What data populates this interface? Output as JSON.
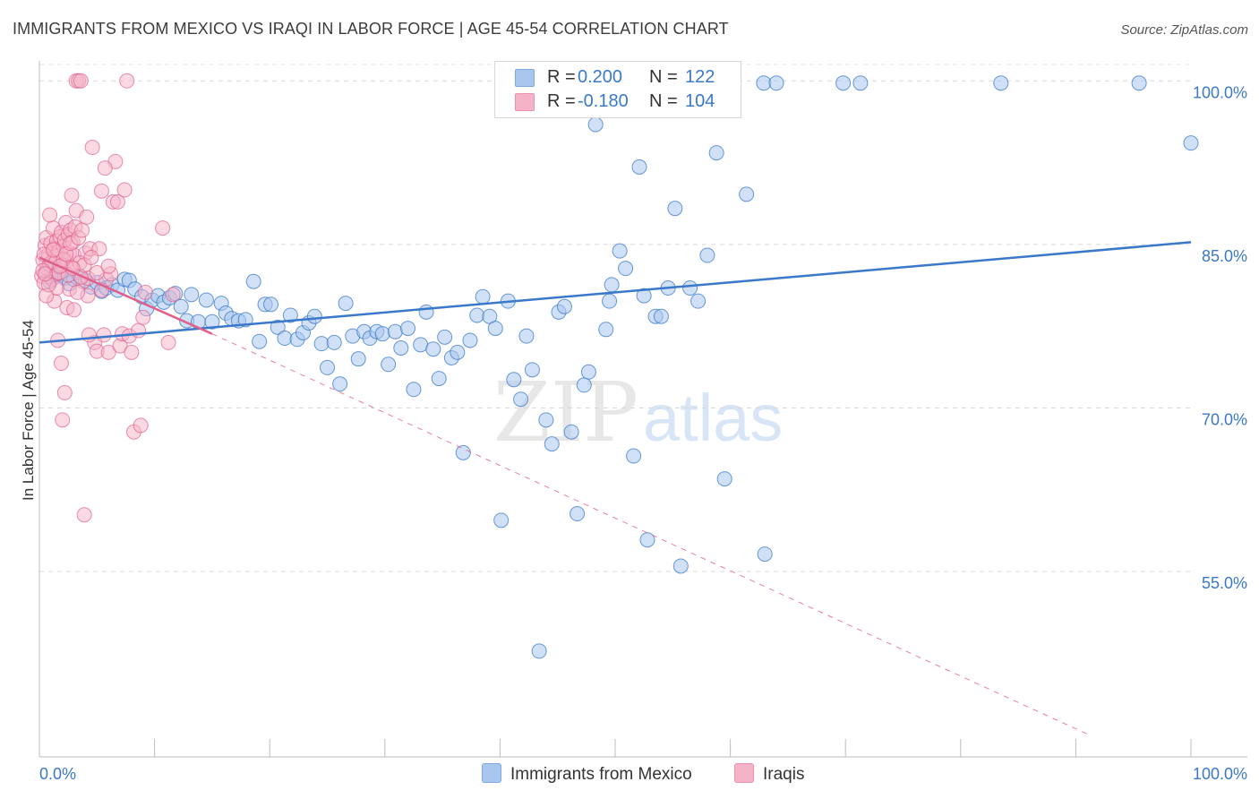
{
  "header": {
    "title": "IMMIGRANTS FROM MEXICO VS IRAQI IN LABOR FORCE | AGE 45-54 CORRELATION CHART",
    "source": "Source: ZipAtlas.com"
  },
  "watermark": {
    "part1": "ZIP",
    "part2": "atlas"
  },
  "legend": {
    "rows": [
      {
        "r_label": "R =",
        "r_value": "0.200",
        "n_label": "N =",
        "n_value": "122",
        "color": "#a9c6ee"
      },
      {
        "r_label": "R =",
        "r_value": "-0.180",
        "n_label": "N =",
        "n_value": "104",
        "color": "#f5b3c8"
      }
    ]
  },
  "bottom_legend": [
    {
      "label": "Immigrants from Mexico",
      "color": "#a9c6ee"
    },
    {
      "label": "Iraqis",
      "color": "#f5b3c8"
    }
  ],
  "chart_data": {
    "type": "scatter",
    "title": "IMMIGRANTS FROM MEXICO VS IRAQI IN LABOR FORCE | AGE 45-54 CORRELATION CHART",
    "xlabel": "",
    "ylabel": "In Labor Force | Age 45-54",
    "xlim": [
      0,
      100
    ],
    "ylim": [
      38,
      101.5
    ],
    "x_tick_labels": [
      "0.0%",
      "100.0%"
    ],
    "y_ticks": [
      55,
      70,
      85,
      100
    ],
    "y_tick_labels": [
      "55.0%",
      "70.0%",
      "85.0%",
      "100.0%"
    ],
    "grid": true,
    "colors": {
      "mexico": "#3a78c9",
      "iraqi": "#e0608c",
      "mexico_fill": "#a9c6ee",
      "iraqi_fill": "#f5b3c8",
      "tick_text": "#3a78c9"
    },
    "series": [
      {
        "name": "Immigrants from Mexico",
        "r": 0.2,
        "n": 122,
        "trend": {
          "x": [
            0,
            100
          ],
          "y": [
            76.0,
            85.2
          ],
          "style": "solid"
        },
        "points": [
          [
            0.6,
            82.4
          ],
          [
            0.9,
            81.6
          ],
          [
            1.1,
            82.0
          ],
          [
            1.3,
            82.8
          ],
          [
            1.5,
            82.2
          ],
          [
            1.7,
            83.0
          ],
          [
            1.9,
            82.5
          ],
          [
            2.2,
            81.9
          ],
          [
            2.6,
            81.4
          ],
          [
            3.0,
            81.8
          ],
          [
            3.5,
            82.1
          ],
          [
            4.0,
            81.7
          ],
          [
            4.5,
            81.1
          ],
          [
            5.0,
            81.5
          ],
          [
            5.4,
            80.7
          ],
          [
            5.8,
            81.0
          ],
          [
            6.3,
            81.3
          ],
          [
            6.8,
            80.8
          ],
          [
            7.4,
            81.8
          ],
          [
            7.8,
            81.7
          ],
          [
            8.3,
            80.9
          ],
          [
            8.9,
            80.2
          ],
          [
            9.3,
            79.1
          ],
          [
            9.8,
            79.9
          ],
          [
            10.3,
            80.3
          ],
          [
            10.8,
            79.7
          ],
          [
            11.3,
            80.1
          ],
          [
            11.8,
            80.5
          ],
          [
            12.3,
            79.3
          ],
          [
            12.8,
            78.0
          ],
          [
            13.2,
            80.4
          ],
          [
            13.8,
            77.9
          ],
          [
            14.5,
            79.9
          ],
          [
            15.0,
            77.9
          ],
          [
            15.8,
            79.6
          ],
          [
            16.2,
            78.7
          ],
          [
            16.7,
            78.2
          ],
          [
            17.3,
            78.0
          ],
          [
            17.9,
            78.1
          ],
          [
            18.6,
            81.6
          ],
          [
            19.1,
            76.1
          ],
          [
            19.6,
            79.5
          ],
          [
            20.1,
            79.5
          ],
          [
            20.7,
            77.4
          ],
          [
            21.3,
            76.4
          ],
          [
            21.8,
            78.5
          ],
          [
            22.4,
            76.3
          ],
          [
            22.9,
            76.9
          ],
          [
            23.4,
            77.8
          ],
          [
            23.9,
            78.4
          ],
          [
            24.5,
            75.9
          ],
          [
            25.0,
            73.7
          ],
          [
            25.6,
            76.0
          ],
          [
            26.1,
            72.2
          ],
          [
            26.6,
            79.6
          ],
          [
            27.2,
            76.6
          ],
          [
            27.7,
            74.5
          ],
          [
            28.2,
            77.0
          ],
          [
            28.7,
            76.4
          ],
          [
            29.3,
            77.0
          ],
          [
            29.8,
            76.8
          ],
          [
            30.3,
            74.0
          ],
          [
            30.9,
            77.0
          ],
          [
            31.4,
            75.5
          ],
          [
            32.0,
            77.3
          ],
          [
            32.5,
            71.7
          ],
          [
            33.1,
            75.8
          ],
          [
            33.6,
            78.8
          ],
          [
            34.2,
            75.4
          ],
          [
            34.7,
            72.7
          ],
          [
            35.2,
            76.5
          ],
          [
            35.8,
            74.6
          ],
          [
            36.3,
            75.1
          ],
          [
            36.8,
            65.9
          ],
          [
            37.4,
            76.2
          ],
          [
            38.0,
            78.5
          ],
          [
            38.5,
            80.2
          ],
          [
            39.1,
            78.4
          ],
          [
            39.6,
            77.3
          ],
          [
            40.1,
            59.7
          ],
          [
            40.7,
            79.8
          ],
          [
            41.2,
            72.6
          ],
          [
            41.8,
            70.8
          ],
          [
            42.3,
            76.6
          ],
          [
            42.8,
            73.5
          ],
          [
            43.4,
            47.7
          ],
          [
            44.0,
            68.9
          ],
          [
            44.5,
            66.7
          ],
          [
            45.1,
            78.8
          ],
          [
            45.6,
            79.3
          ],
          [
            46.2,
            67.8
          ],
          [
            46.7,
            60.3
          ],
          [
            47.3,
            72.1
          ],
          [
            47.7,
            73.3
          ],
          [
            48.3,
            96.0
          ],
          [
            49.2,
            77.2
          ],
          [
            49.7,
            81.3
          ],
          [
            50.4,
            84.4
          ],
          [
            50.9,
            82.8
          ],
          [
            51.6,
            65.6
          ],
          [
            52.1,
            92.1
          ],
          [
            52.8,
            57.9
          ],
          [
            53.5,
            78.4
          ],
          [
            54.0,
            78.4
          ],
          [
            54.6,
            81.0
          ],
          [
            55.2,
            88.3
          ],
          [
            55.7,
            55.5
          ],
          [
            56.5,
            81.0
          ],
          [
            57.2,
            79.8
          ],
          [
            58.0,
            84.0
          ],
          [
            58.8,
            93.4
          ],
          [
            59.5,
            63.5
          ],
          [
            61.4,
            89.6
          ],
          [
            63.0,
            56.6
          ],
          [
            62.9,
            99.8
          ],
          [
            64.0,
            99.8
          ],
          [
            69.8,
            99.8
          ],
          [
            71.3,
            99.8
          ],
          [
            83.5,
            99.8
          ],
          [
            95.5,
            99.8
          ],
          [
            100.0,
            94.3
          ],
          [
            49.5,
            79.8
          ],
          [
            52.5,
            80.3
          ]
        ]
      },
      {
        "name": "Iraqis",
        "r": -0.18,
        "n": 104,
        "trend": {
          "x": [
            0,
            15.0
          ],
          "y": [
            83.8,
            76.8
          ],
          "style": "solid",
          "extended": {
            "x": [
              15.0,
              91.2
            ],
            "y": [
              76.8,
              40.0
            ],
            "style": "dashed"
          }
        },
        "points": [
          [
            0.2,
            82.1
          ],
          [
            0.3,
            83.6
          ],
          [
            0.4,
            81.5
          ],
          [
            0.5,
            84.9
          ],
          [
            0.6,
            85.6
          ],
          [
            0.7,
            82.8
          ],
          [
            0.8,
            84.1
          ],
          [
            0.9,
            83.2
          ],
          [
            1.0,
            85.1
          ],
          [
            1.1,
            81.8
          ],
          [
            1.2,
            86.5
          ],
          [
            1.3,
            84.6
          ],
          [
            1.4,
            83.9
          ],
          [
            1.5,
            85.3
          ],
          [
            1.6,
            82.4
          ],
          [
            1.7,
            84.4
          ],
          [
            1.8,
            85.7
          ],
          [
            1.9,
            86.1
          ],
          [
            2.0,
            83.1
          ],
          [
            2.1,
            84.8
          ],
          [
            2.2,
            85.4
          ],
          [
            2.3,
            87.0
          ],
          [
            2.4,
            83.5
          ],
          [
            2.5,
            85.9
          ],
          [
            2.6,
            84.2
          ],
          [
            2.7,
            86.3
          ],
          [
            2.8,
            82.9
          ],
          [
            2.9,
            85.2
          ],
          [
            3.0,
            84.0
          ],
          [
            3.1,
            86.6
          ],
          [
            3.2,
            88.1
          ],
          [
            0.9,
            87.7
          ],
          [
            1.3,
            79.8
          ],
          [
            1.6,
            76.2
          ],
          [
            1.9,
            74.1
          ],
          [
            2.0,
            68.9
          ],
          [
            2.2,
            71.4
          ],
          [
            2.4,
            79.2
          ],
          [
            2.6,
            80.9
          ],
          [
            2.8,
            89.5
          ],
          [
            3.0,
            79.0
          ],
          [
            3.2,
            100.0
          ],
          [
            3.4,
            100.0
          ],
          [
            3.6,
            100.0
          ],
          [
            3.8,
            81.6
          ],
          [
            4.0,
            84.2
          ],
          [
            4.2,
            81.9
          ],
          [
            4.4,
            84.6
          ],
          [
            4.6,
            93.9
          ],
          [
            4.8,
            76.0
          ],
          [
            5.0,
            75.2
          ],
          [
            5.2,
            84.6
          ],
          [
            5.4,
            89.9
          ],
          [
            5.6,
            76.7
          ],
          [
            5.8,
            81.8
          ],
          [
            6.0,
            75.1
          ],
          [
            6.2,
            82.3
          ],
          [
            6.4,
            88.9
          ],
          [
            6.6,
            92.6
          ],
          [
            6.8,
            88.9
          ],
          [
            7.0,
            75.7
          ],
          [
            7.2,
            76.8
          ],
          [
            7.4,
            90.0
          ],
          [
            7.6,
            100.0
          ],
          [
            7.8,
            76.6
          ],
          [
            8.0,
            75.1
          ],
          [
            8.2,
            67.8
          ],
          [
            8.6,
            77.1
          ],
          [
            8.8,
            68.4
          ],
          [
            9.0,
            78.3
          ],
          [
            9.2,
            80.6
          ],
          [
            10.7,
            86.5
          ],
          [
            11.2,
            76.0
          ],
          [
            11.6,
            80.4
          ],
          [
            3.9,
            60.2
          ],
          [
            4.3,
            76.7
          ],
          [
            1.1,
            83.4
          ],
          [
            1.5,
            81.0
          ],
          [
            0.4,
            84.1
          ],
          [
            0.6,
            80.3
          ],
          [
            3.5,
            83.3
          ],
          [
            3.6,
            82.0
          ],
          [
            3.9,
            83.1
          ],
          [
            4.2,
            80.3
          ],
          [
            5.0,
            82.4
          ],
          [
            5.4,
            80.8
          ],
          [
            6.0,
            83.0
          ],
          [
            0.8,
            81.3
          ],
          [
            1.7,
            82.4
          ],
          [
            2.1,
            83.6
          ],
          [
            2.5,
            82.2
          ],
          [
            2.9,
            82.8
          ],
          [
            3.3,
            80.6
          ],
          [
            0.3,
            82.6
          ],
          [
            0.5,
            82.3
          ],
          [
            1.2,
            84.5
          ],
          [
            1.8,
            83.0
          ],
          [
            2.3,
            84.1
          ],
          [
            2.7,
            85.1
          ],
          [
            3.4,
            85.6
          ],
          [
            3.7,
            86.3
          ],
          [
            4.1,
            87.5
          ],
          [
            4.5,
            83.8
          ],
          [
            5.7,
            92.0
          ]
        ]
      }
    ]
  }
}
